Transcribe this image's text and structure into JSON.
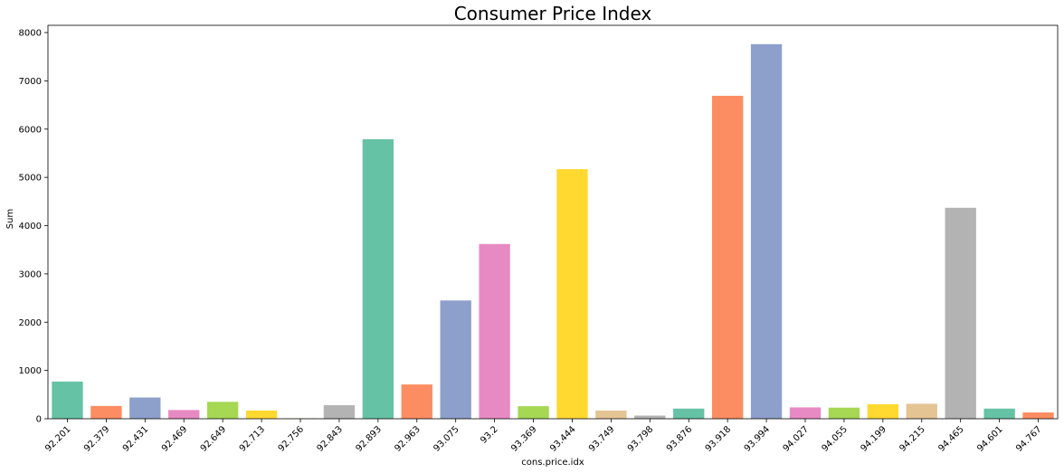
{
  "chart_data": {
    "type": "bar",
    "title": "Consumer Price Index",
    "xlabel": "cons.price.idx",
    "ylabel": "Sum",
    "ylim": [
      0,
      8150
    ],
    "yticks": [
      0,
      1000,
      2000,
      3000,
      4000,
      5000,
      6000,
      7000,
      8000
    ],
    "grid": false,
    "categories": [
      "92.201",
      "92.379",
      "92.431",
      "92.469",
      "92.649",
      "92.713",
      "92.756",
      "92.843",
      "92.893",
      "92.963",
      "93.075",
      "93.2",
      "93.369",
      "93.444",
      "93.749",
      "93.798",
      "93.876",
      "93.918",
      "93.994",
      "94.027",
      "94.055",
      "94.199",
      "94.215",
      "94.465",
      "94.601",
      "94.767"
    ],
    "values": [
      770,
      265,
      440,
      180,
      350,
      170,
      10,
      280,
      5790,
      710,
      2450,
      3620,
      260,
      5170,
      170,
      65,
      210,
      6690,
      7760,
      235,
      230,
      300,
      310,
      4370,
      210,
      130
    ],
    "colors": [
      "#66c2a5",
      "#fc8d62",
      "#8da0cb",
      "#e78ac3",
      "#a6d854",
      "#ffd92f",
      "#e5c494",
      "#b3b3b3"
    ]
  }
}
